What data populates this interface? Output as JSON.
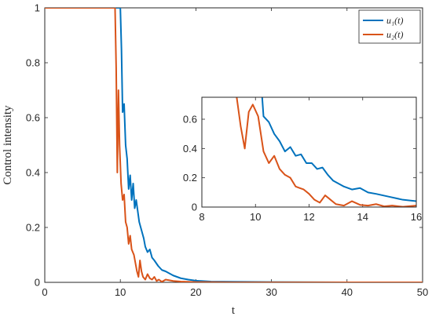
{
  "chart_data": [
    {
      "type": "line",
      "xlabel": "t",
      "ylabel": "Control intensity",
      "xlim": [
        0,
        50
      ],
      "ylim": [
        0,
        1
      ],
      "xticks": [
        0,
        10,
        20,
        30,
        40,
        50
      ],
      "yticks": [
        0,
        0.2,
        0.4,
        0.6,
        0.8,
        1
      ],
      "xtick_labels": [
        "0",
        "10",
        "20",
        "30",
        "40",
        "50"
      ],
      "ytick_labels": [
        "0",
        "0.2",
        "0.4",
        "0.6",
        "0.8",
        "1"
      ],
      "grid": false,
      "legend_position": "top-right",
      "series": [
        {
          "name": "u₁(t)",
          "color": "#0072BD",
          "x": [
            0,
            9.8,
            10.0,
            10.15,
            10.3,
            10.5,
            10.7,
            10.9,
            11.1,
            11.3,
            11.5,
            11.7,
            11.9,
            12.1,
            12.3,
            12.5,
            12.7,
            12.9,
            13.1,
            13.3,
            13.6,
            13.9,
            14.2,
            14.5,
            15.0,
            15.5,
            16.0,
            17,
            18,
            19,
            20,
            22,
            25,
            30,
            40,
            50
          ],
          "y": [
            1,
            1,
            1,
            0.85,
            0.62,
            0.65,
            0.5,
            0.45,
            0.34,
            0.39,
            0.3,
            0.36,
            0.27,
            0.3,
            0.26,
            0.22,
            0.2,
            0.18,
            0.16,
            0.13,
            0.11,
            0.12,
            0.09,
            0.08,
            0.06,
            0.045,
            0.04,
            0.025,
            0.015,
            0.01,
            0.006,
            0.003,
            0.002,
            0.001,
            0,
            0
          ]
        },
        {
          "name": "u₂(t)",
          "color": "#D95319",
          "x": [
            0,
            9.3,
            9.45,
            9.6,
            9.75,
            9.9,
            10.1,
            10.3,
            10.5,
            10.7,
            10.9,
            11.1,
            11.3,
            11.5,
            11.8,
            12.0,
            12.2,
            12.4,
            12.6,
            12.8,
            13.0,
            13.3,
            13.6,
            13.9,
            14.2,
            14.5,
            14.8,
            15.1,
            15.5,
            16.0,
            17,
            18,
            20,
            25,
            30,
            40,
            50
          ],
          "y": [
            1,
            1,
            0.78,
            0.4,
            0.7,
            0.5,
            0.36,
            0.3,
            0.32,
            0.22,
            0.2,
            0.14,
            0.17,
            0.12,
            0.1,
            0.07,
            0.04,
            0.02,
            0.08,
            0.04,
            0.02,
            0.01,
            0.03,
            0.015,
            0.01,
            0.02,
            0.005,
            0.01,
            0.002,
            0.01,
            0.005,
            0.003,
            0.001,
            0,
            0,
            0,
            0
          ]
        }
      ]
    },
    {
      "type": "line",
      "role": "inset",
      "xlim": [
        8,
        16
      ],
      "ylim": [
        0,
        0.75
      ],
      "xticks": [
        8,
        10,
        12,
        14,
        16
      ],
      "yticks": [
        0,
        0.2,
        0.4,
        0.6
      ],
      "xtick_labels": [
        "8",
        "10",
        "12",
        "14",
        "16"
      ],
      "ytick_labels": [
        "0",
        "0.2",
        "0.4",
        "0.6"
      ],
      "grid": false,
      "series": [
        {
          "color": "#0072BD",
          "x": [
            10.25,
            10.3,
            10.5,
            10.7,
            10.9,
            11.1,
            11.3,
            11.5,
            11.7,
            11.9,
            12.1,
            12.3,
            12.5,
            12.7,
            12.9,
            13.1,
            13.3,
            13.6,
            13.9,
            14.2,
            14.5,
            15.0,
            15.5,
            16.0
          ],
          "y": [
            0.75,
            0.62,
            0.58,
            0.5,
            0.45,
            0.38,
            0.41,
            0.35,
            0.36,
            0.3,
            0.3,
            0.26,
            0.27,
            0.22,
            0.18,
            0.16,
            0.14,
            0.12,
            0.13,
            0.1,
            0.09,
            0.07,
            0.05,
            0.04
          ]
        },
        {
          "color": "#D95319",
          "x": [
            9.3,
            9.45,
            9.6,
            9.75,
            9.9,
            10.1,
            10.3,
            10.5,
            10.7,
            10.9,
            11.1,
            11.3,
            11.5,
            11.8,
            12.0,
            12.2,
            12.4,
            12.6,
            12.8,
            13.0,
            13.3,
            13.6,
            13.9,
            14.2,
            14.5,
            14.8,
            15.1,
            15.5,
            16.0
          ],
          "y": [
            0.75,
            0.55,
            0.4,
            0.65,
            0.7,
            0.62,
            0.38,
            0.3,
            0.35,
            0.26,
            0.22,
            0.2,
            0.14,
            0.12,
            0.09,
            0.05,
            0.03,
            0.08,
            0.05,
            0.02,
            0.01,
            0.04,
            0.015,
            0.01,
            0.02,
            0.005,
            0.01,
            0.002,
            0.01
          ]
        }
      ]
    }
  ]
}
